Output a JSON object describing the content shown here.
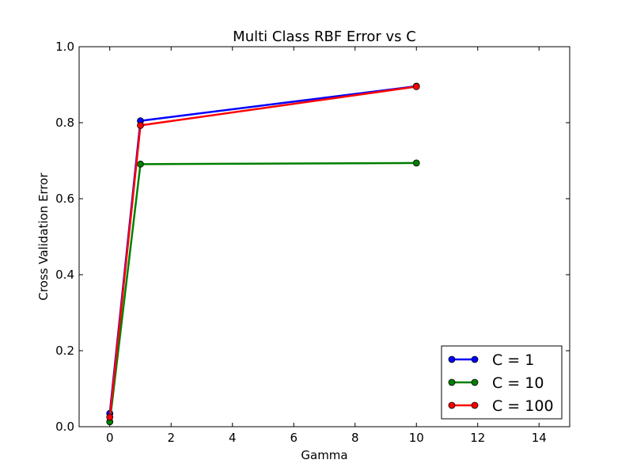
{
  "chart_data": {
    "type": "line",
    "title": "Multi Class RBF Error vs C",
    "xlabel": "Gamma",
    "ylabel": "Cross Validation Error",
    "xlim": [
      -1,
      15
    ],
    "ylim": [
      0.0,
      1.0
    ],
    "xticks": [
      "0",
      "2",
      "4",
      "6",
      "8",
      "10",
      "12",
      "14"
    ],
    "yticks": [
      "0.0",
      "0.2",
      "0.4",
      "0.6",
      "0.8",
      "1.0"
    ],
    "x": [
      0.0001,
      1,
      10
    ],
    "grid": false,
    "legend_position": "lower-right",
    "series": [
      {
        "name": "C = 1",
        "color": "#0000ff",
        "values": [
          0.035,
          0.805,
          0.896
        ]
      },
      {
        "name": "C = 10",
        "color": "#007f00",
        "values": [
          0.013,
          0.691,
          0.694
        ]
      },
      {
        "name": "C = 100",
        "color": "#ff0000",
        "values": [
          0.025,
          0.793,
          0.895
        ]
      }
    ]
  }
}
